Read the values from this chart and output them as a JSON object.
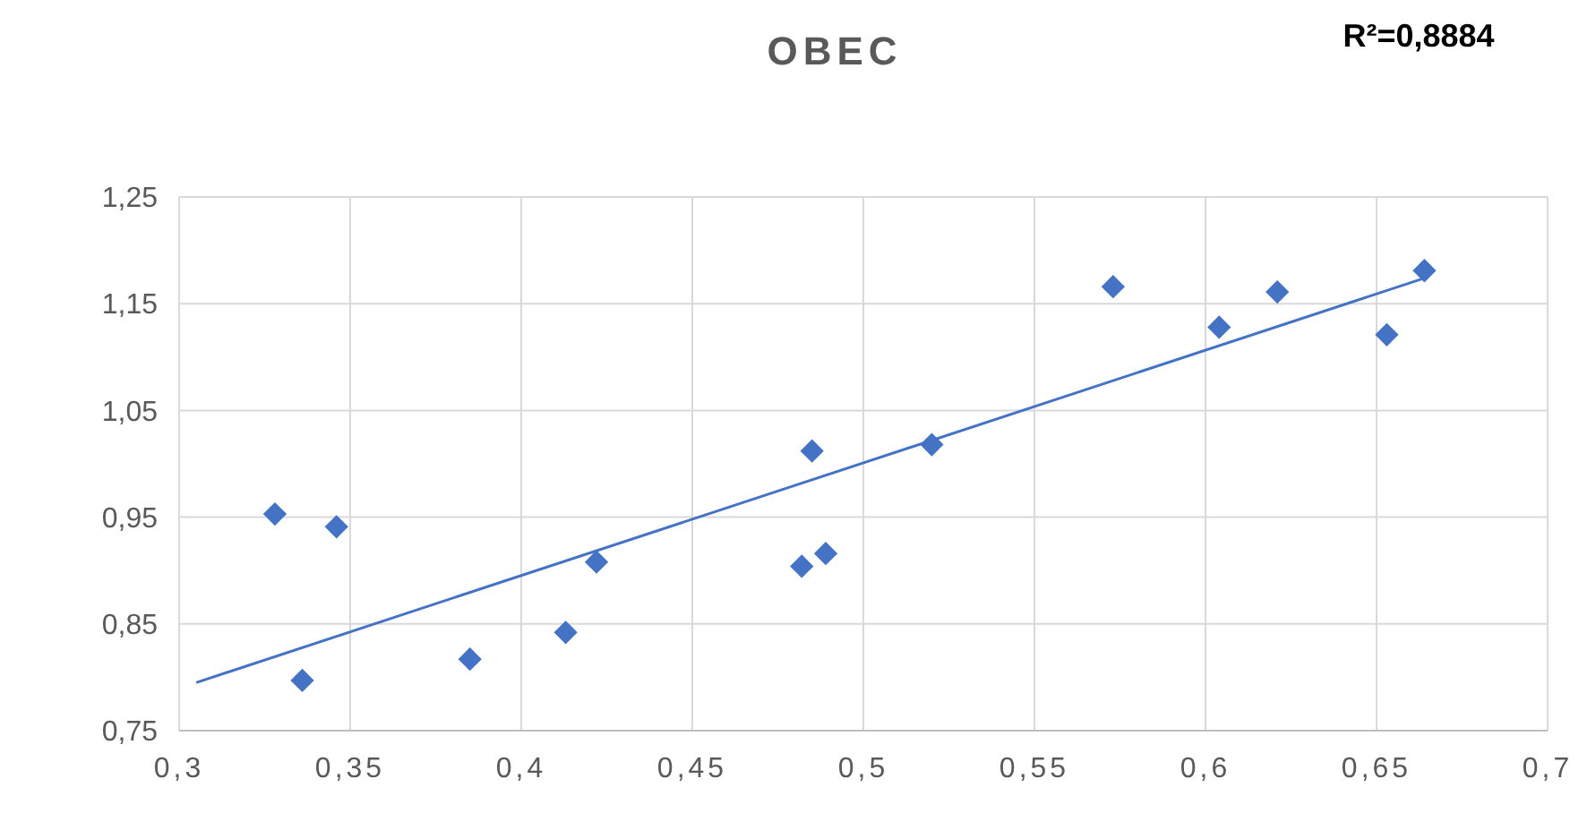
{
  "chart_data": {
    "type": "scatter",
    "title": "OBEC",
    "annotations": [
      "R²=0,8884"
    ],
    "xlim": [
      0.3,
      0.7
    ],
    "xticks": [
      {
        "value": 0.3,
        "label": "0,3"
      },
      {
        "value": 0.35,
        "label": "0,35"
      },
      {
        "value": 0.4,
        "label": "0,4"
      },
      {
        "value": 0.45,
        "label": "0,45"
      },
      {
        "value": 0.5,
        "label": "0,5"
      },
      {
        "value": 0.55,
        "label": "0,55"
      },
      {
        "value": 0.6,
        "label": "0,6"
      },
      {
        "value": 0.65,
        "label": "0,65"
      },
      {
        "value": 0.7,
        "label": "0,7"
      }
    ],
    "ylim": [
      0.75,
      1.25
    ],
    "yticks": [
      {
        "value": 0.75,
        "label": "0,75"
      },
      {
        "value": 0.85,
        "label": "0,85"
      },
      {
        "value": 0.95,
        "label": "0,95"
      },
      {
        "value": 1.05,
        "label": "1,05"
      },
      {
        "value": 1.15,
        "label": "1,15"
      },
      {
        "value": 1.25,
        "label": "1,25"
      }
    ],
    "grid": true,
    "series": [
      {
        "marker": "diamond",
        "color": "#4472c4",
        "x": [
          0.328,
          0.336,
          0.346,
          0.385,
          0.413,
          0.422,
          0.482,
          0.485,
          0.489,
          0.52,
          0.573,
          0.604,
          0.621,
          0.653,
          0.664
        ],
        "values": [
          0.953,
          0.797,
          0.941,
          0.817,
          0.842,
          0.908,
          0.904,
          1.012,
          0.916,
          1.018,
          1.166,
          1.128,
          1.161,
          1.121,
          1.181
        ]
      },
      {
        "type": "line",
        "marker": "none",
        "color": "#4472c4",
        "x": [
          0.305,
          0.664
        ],
        "values": [
          0.795,
          1.174
        ]
      }
    ]
  }
}
